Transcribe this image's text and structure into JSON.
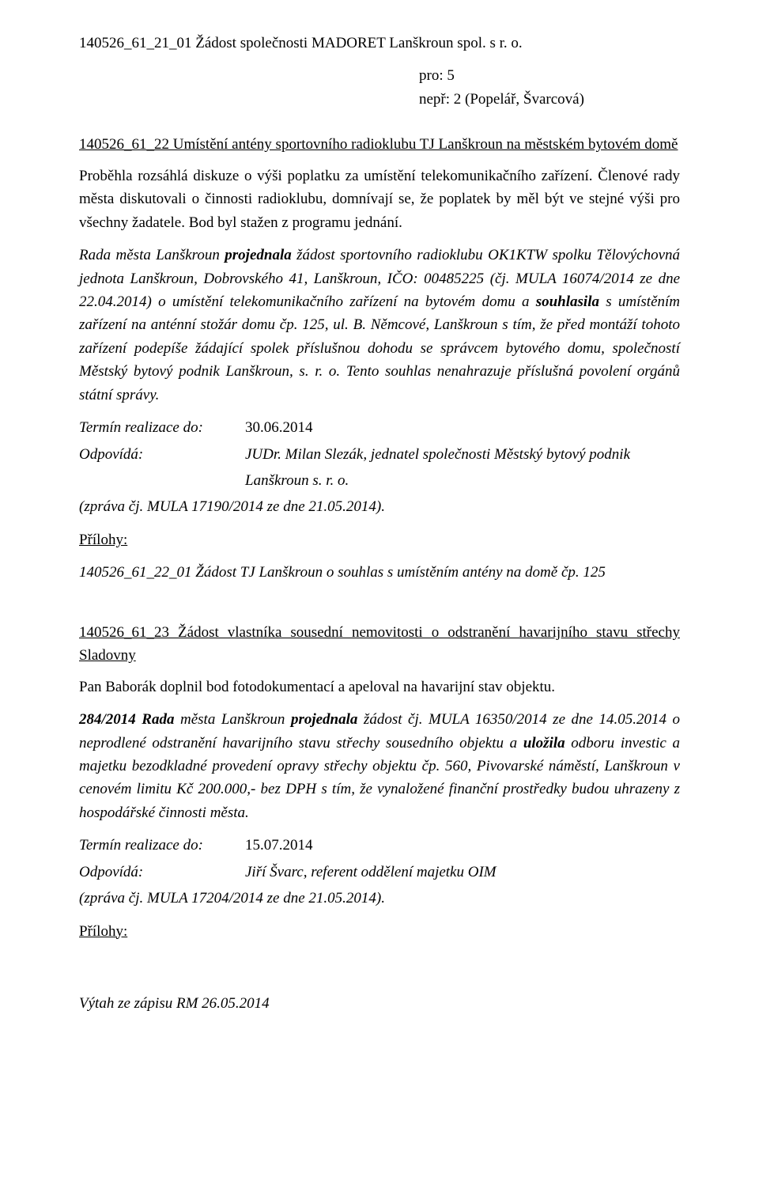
{
  "attachment1": "140526_61_21_01 Žádost společnosti MADORET Lanškroun spol. s r. o.",
  "vote": {
    "pro": "pro: 5",
    "nepr": "nepř: 2 (Popelář, Švarcová)"
  },
  "item22": {
    "title_prefix": "140526_61_22 Umístění antény sportovního radioklubu TJ Lanškroun na městském bytovém domě",
    "para1": "Proběhla rozsáhlá diskuze o výši poplatku za umístění telekomunikačního zařízení. Členové rady města diskutovali o činnosti radioklubu, domnívají se, že poplatek by měl být ve stejné výši pro všechny žadatele. Bod byl stažen z programu jednání.",
    "para2_a": "Rada města Lanškroun ",
    "para2_b": "projednala",
    "para2_c": " žádost sportovního radioklubu OK1KTW spolku Tělovýchovná jednota Lanškroun, Dobrovského 41, Lanškroun, IČO: 00485225 (čj. MULA 16074/2014 ze dne 22.04.2014) o umístění telekomunikačního zařízení na bytovém domu a ",
    "para2_d": "souhlasila",
    "para2_e": " s umístěním zařízení na anténní stožár domu čp. 125, ul. B. Němcové, Lanškroun s tím, že před montáží tohoto zařízení podepíše žádající spolek příslušnou dohodu se správcem bytového domu, společností Městský bytový podnik Lanškroun, s. r. o. Tento souhlas nenahrazuje příslušná povolení orgánů státní správy.",
    "termin_label": "Termín realizace do:",
    "termin_value": "30.06.2014",
    "odpovida_label": "Odpovídá:",
    "odpovida_value1": "JUDr. Milan Slezák, jednatel společnosti Městský bytový podnik",
    "odpovida_value2": "Lanškroun s. r. o.",
    "zprava": "(zpráva čj. MULA 17190/2014 ze dne 21.05.2014).",
    "prilohy_label": "Přílohy:",
    "priloha1": "140526_61_22_01 Žádost TJ Lanškroun o souhlas s umístěním antény na domě čp. 125"
  },
  "item23": {
    "title": "140526_61_23 Žádost vlastníka sousední nemovitosti o odstranění havarijního stavu střechy Sladovny",
    "para1": "Pan Baborák doplnil bod fotodokumentací a apeloval na havarijní stav objektu.",
    "para2_a": "284/2014 Rada",
    "para2_b": " města Lanškroun ",
    "para2_c": "projednala",
    "para2_d": " žádost čj. MULA 16350/2014 ze dne 14.05.2014 o neprodlené odstranění havarijního stavu střechy sousedního objektu a ",
    "para2_e": "uložila",
    "para2_f": " odboru investic a majetku bezodkladné provedení opravy střechy objektu čp. 560, Pivovarské náměstí, Lanškroun v cenovém limitu Kč 200.000,- bez DPH s tím, že vynaložené finanční prostředky budou uhrazeny z hospodářské činnosti města.",
    "termin_label": "Termín realizace do:",
    "termin_value": "15.07.2014",
    "odpovida_label": "Odpovídá:",
    "odpovida_value": "Jiří Švarc, referent oddělení majetku OIM",
    "zprava": "(zpráva čj. MULA 17204/2014 ze dne 21.05.2014).",
    "prilohy_label": "Přílohy:"
  },
  "footer": "Výtah ze zápisu RM 26.05.2014"
}
